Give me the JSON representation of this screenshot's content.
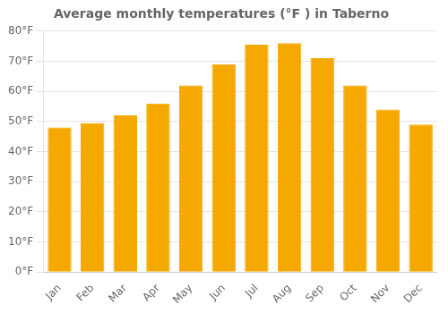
{
  "chart_data": {
    "type": "bar",
    "title": "Average monthly temperatures (°F ) in Taberno",
    "categories": [
      "Jan",
      "Feb",
      "Mar",
      "Apr",
      "May",
      "Jun",
      "Jul",
      "Aug",
      "Sep",
      "Oct",
      "Nov",
      "Dec"
    ],
    "values": [
      48,
      49.5,
      52,
      56,
      62,
      69,
      75.5,
      76,
      71,
      62,
      54,
      49
    ],
    "color": "#F5A800",
    "ylim": [
      0,
      80
    ],
    "yticks": [
      {
        "value": 0,
        "label": "0°F"
      },
      {
        "value": 10,
        "label": "10°F"
      },
      {
        "value": 20,
        "label": "20°F"
      },
      {
        "value": 30,
        "label": "30°F"
      },
      {
        "value": 40,
        "label": "40°F"
      },
      {
        "value": 50,
        "label": "50°F"
      },
      {
        "value": 60,
        "label": "60°F"
      },
      {
        "value": 70,
        "label": "70°F"
      },
      {
        "value": 80,
        "label": "80°F"
      }
    ],
    "grid": true
  }
}
